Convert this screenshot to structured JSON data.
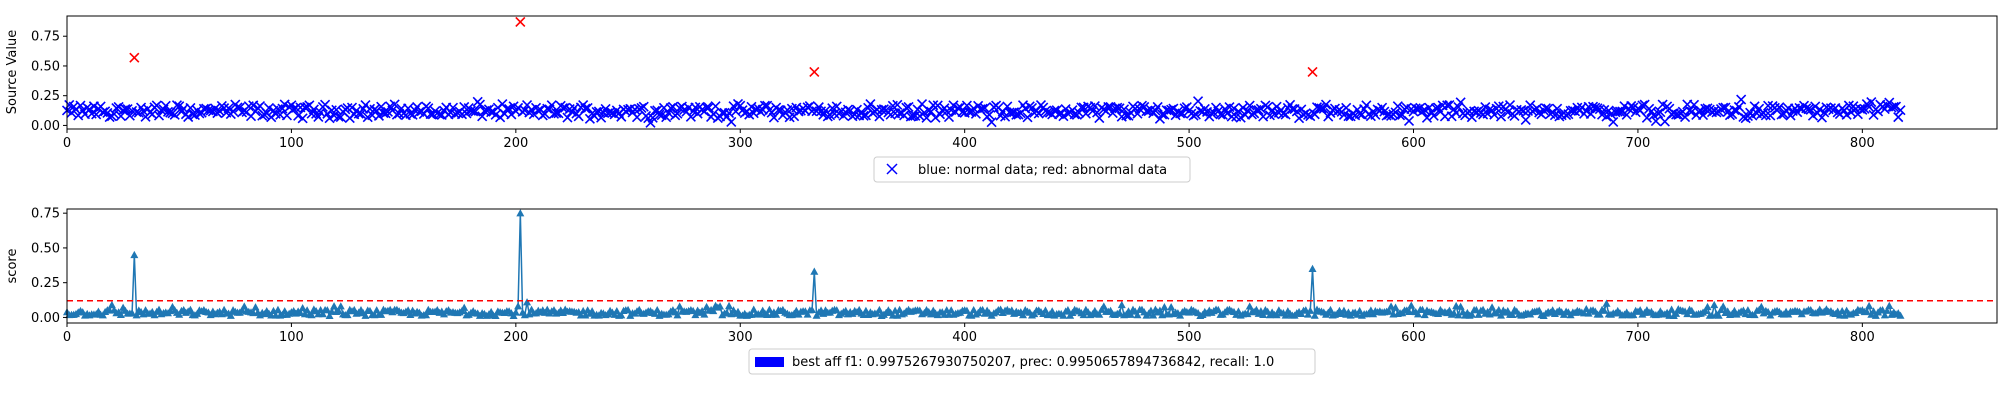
{
  "chart_data": [
    {
      "type": "scatter",
      "ylabel": "Source Value",
      "xlim": [
        0,
        860
      ],
      "ylim": [
        -0.03,
        0.92
      ],
      "xticks": [
        0,
        100,
        200,
        300,
        400,
        500,
        600,
        700,
        800
      ],
      "yticks": [
        0.0,
        0.25,
        0.5,
        0.75
      ],
      "ytick_labels": [
        "0.00",
        "0.25",
        "0.50",
        "0.75"
      ],
      "legend": {
        "label": "blue: normal data; red: abnormal data",
        "placement": "below"
      },
      "series": [
        {
          "role": "normal",
          "color": "#0000ff",
          "marker": "x",
          "n": 818,
          "baseline": 0.12,
          "spread": 0.045
        },
        {
          "role": "abnormal",
          "color": "#ff0000",
          "marker": "x",
          "points": [
            [
              30,
              0.57
            ],
            [
              202,
              0.87
            ],
            [
              333,
              0.45
            ],
            [
              555,
              0.45
            ]
          ]
        }
      ]
    },
    {
      "type": "line",
      "ylabel": "score",
      "xlim": [
        0,
        860
      ],
      "ylim": [
        -0.04,
        0.78
      ],
      "xticks": [
        0,
        100,
        200,
        300,
        400,
        500,
        600,
        700,
        800
      ],
      "yticks": [
        0.0,
        0.25,
        0.5,
        0.75
      ],
      "ytick_labels": [
        "0.00",
        "0.25",
        "0.50",
        "0.75"
      ],
      "threshold": 0.12,
      "legend": {
        "label": "best aff f1: 0.9975267930750207, prec: 0.9950657894736842, recall: 1.0",
        "placement": "below"
      },
      "series": [
        {
          "role": "score",
          "color": "#1f77b4",
          "marker": "^",
          "n": 818,
          "baseline": 0.03,
          "peaks": [
            [
              30,
              0.45
            ],
            [
              202,
              0.75
            ],
            [
              333,
              0.33
            ],
            [
              555,
              0.35
            ],
            [
              20,
              0.09
            ],
            [
              205,
              0.11
            ],
            [
              273,
              0.08
            ],
            [
              462,
              0.08
            ],
            [
              470,
              0.09
            ],
            [
              527,
              0.08
            ],
            [
              590,
              0.08
            ],
            [
              686,
              0.1
            ],
            [
              734,
              0.09
            ]
          ]
        },
        {
          "role": "threshold",
          "color": "#ff0000",
          "style": "dashed"
        }
      ]
    }
  ],
  "colors": {
    "normal": "#0000ff",
    "abnormal": "#ff0000",
    "score": "#1f77b4",
    "threshold": "#ff0000",
    "legend_patch": "#0000ff"
  }
}
